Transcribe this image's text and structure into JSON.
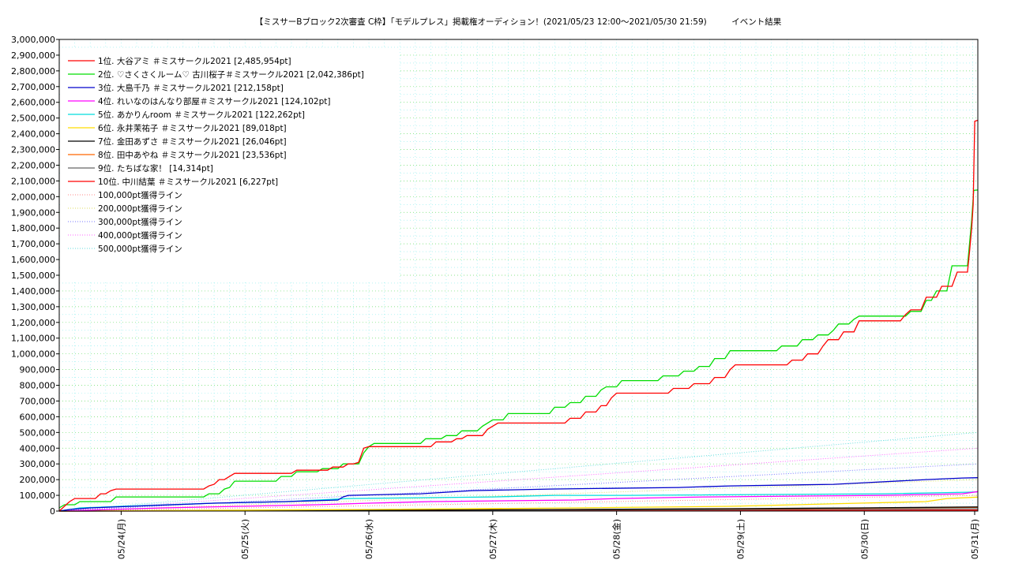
{
  "title": "【ミスサーBブロック2次審査 C枠】「モデルプレス」掲載権オーディション！(2021/05/23 12:00〜2021/05/30 21:59)　　　イベント結果",
  "chart_data": {
    "type": "line",
    "title": "【ミスサーBブロック2次審査 C枠】「モデルプレス」掲載権オーディション！(2021/05/23 12:00〜2021/05/30 21:59)　　　イベント結果",
    "xlabel": "",
    "ylabel": "",
    "x_unit": "hours since 2021/05/23 12:00",
    "xlim": [
      0,
      178
    ],
    "ylim": [
      0,
      3000000
    ],
    "yticks": [
      0,
      100000,
      200000,
      300000,
      400000,
      500000,
      600000,
      700000,
      800000,
      900000,
      1000000,
      1100000,
      1200000,
      1300000,
      1400000,
      1500000,
      1600000,
      1700000,
      1800000,
      1900000,
      2000000,
      2100000,
      2200000,
      2300000,
      2400000,
      2500000,
      2600000,
      2700000,
      2800000,
      2900000,
      3000000
    ],
    "ytick_labels": [
      "0",
      "100,000",
      "200,000",
      "300,000",
      "400,000",
      "500,000",
      "600,000",
      "700,000",
      "800,000",
      "900,000",
      "1,000,000",
      "1,100,000",
      "1,200,000",
      "1,300,000",
      "1,400,000",
      "1,500,000",
      "1,600,000",
      "1,700,000",
      "1,800,000",
      "1,900,000",
      "2,000,000",
      "2,100,000",
      "2,200,000",
      "2,300,000",
      "2,400,000",
      "2,500,000",
      "2,600,000",
      "2,700,000",
      "2,800,000",
      "2,900,000",
      "3,000,000"
    ],
    "xticks": [
      {
        "x": 12,
        "label": "05/24(月)"
      },
      {
        "x": 36,
        "label": "05/25(火)"
      },
      {
        "x": 60,
        "label": "05/26(水)"
      },
      {
        "x": 84,
        "label": "05/27(木)"
      },
      {
        "x": 108,
        "label": "05/28(金)"
      },
      {
        "x": 132,
        "label": "05/29(土)"
      },
      {
        "x": 156,
        "label": "05/30(日)"
      },
      {
        "x": 180,
        "label": "05/31(月)"
      }
    ],
    "grid": true,
    "legend_position": "top-left",
    "series": [
      {
        "name": "1位. 大谷アミ ＃ミスサークル2021 [2,485,954pt]",
        "color": "#ff0000",
        "dash": "",
        "points": [
          [
            0,
            0
          ],
          [
            1,
            30000
          ],
          [
            2,
            60000
          ],
          [
            3,
            80000
          ],
          [
            7,
            80000
          ],
          [
            8,
            110000
          ],
          [
            9,
            110000
          ],
          [
            10,
            130000
          ],
          [
            11,
            140000
          ],
          [
            28,
            140000
          ],
          [
            29,
            160000
          ],
          [
            30,
            170000
          ],
          [
            31,
            200000
          ],
          [
            32,
            200000
          ],
          [
            33,
            220000
          ],
          [
            34,
            240000
          ],
          [
            45,
            240000
          ],
          [
            46,
            260000
          ],
          [
            52,
            260000
          ],
          [
            53,
            280000
          ],
          [
            55,
            280000
          ],
          [
            56,
            300000
          ],
          [
            57,
            300000
          ],
          [
            58,
            310000
          ],
          [
            59,
            400000
          ],
          [
            60,
            410000
          ],
          [
            72,
            410000
          ],
          [
            73,
            440000
          ],
          [
            76,
            440000
          ],
          [
            77,
            460000
          ],
          [
            78,
            460000
          ],
          [
            79,
            480000
          ],
          [
            82,
            480000
          ],
          [
            83,
            520000
          ],
          [
            85,
            560000
          ],
          [
            98,
            560000
          ],
          [
            99,
            590000
          ],
          [
            101,
            590000
          ],
          [
            102,
            630000
          ],
          [
            104,
            630000
          ],
          [
            105,
            670000
          ],
          [
            106,
            670000
          ],
          [
            107,
            720000
          ],
          [
            108,
            750000
          ],
          [
            118,
            750000
          ],
          [
            119,
            780000
          ],
          [
            122,
            780000
          ],
          [
            123,
            810000
          ],
          [
            126,
            810000
          ],
          [
            127,
            850000
          ],
          [
            129,
            850000
          ],
          [
            130,
            900000
          ],
          [
            131,
            930000
          ],
          [
            141,
            930000
          ],
          [
            142,
            960000
          ],
          [
            144,
            960000
          ],
          [
            145,
            1000000
          ],
          [
            147,
            1000000
          ],
          [
            148,
            1050000
          ],
          [
            149,
            1090000
          ],
          [
            151,
            1090000
          ],
          [
            152,
            1140000
          ],
          [
            154,
            1140000
          ],
          [
            155,
            1210000
          ],
          [
            163,
            1210000
          ],
          [
            164,
            1250000
          ],
          [
            165,
            1280000
          ],
          [
            167,
            1280000
          ],
          [
            168,
            1360000
          ],
          [
            170,
            1360000
          ],
          [
            171,
            1430000
          ],
          [
            173,
            1430000
          ],
          [
            174,
            1520000
          ],
          [
            176,
            1520000
          ],
          [
            176.4,
            1650000
          ],
          [
            176.8,
            1800000
          ],
          [
            177.1,
            1950000
          ],
          [
            177.4,
            2480000
          ],
          [
            178,
            2485954
          ]
        ]
      },
      {
        "name": "2位. ♡さくさくルーム♡ 古川桜子＃ミスサークル2021 [2,042,386pt]",
        "color": "#00dd00",
        "dash": "",
        "points": [
          [
            0,
            20000
          ],
          [
            1,
            40000
          ],
          [
            3,
            40000
          ],
          [
            4,
            60000
          ],
          [
            10,
            60000
          ],
          [
            11,
            90000
          ],
          [
            28,
            90000
          ],
          [
            29,
            110000
          ],
          [
            31,
            110000
          ],
          [
            32,
            140000
          ],
          [
            33,
            150000
          ],
          [
            34,
            190000
          ],
          [
            42,
            190000
          ],
          [
            43,
            220000
          ],
          [
            45,
            220000
          ],
          [
            46,
            250000
          ],
          [
            50,
            250000
          ],
          [
            51,
            270000
          ],
          [
            54,
            270000
          ],
          [
            55,
            300000
          ],
          [
            58,
            300000
          ],
          [
            59,
            370000
          ],
          [
            60,
            410000
          ],
          [
            61,
            430000
          ],
          [
            70,
            430000
          ],
          [
            71,
            460000
          ],
          [
            74,
            460000
          ],
          [
            75,
            480000
          ],
          [
            77,
            480000
          ],
          [
            78,
            510000
          ],
          [
            81,
            510000
          ],
          [
            82,
            540000
          ],
          [
            84,
            580000
          ],
          [
            86,
            580000
          ],
          [
            87,
            620000
          ],
          [
            95,
            620000
          ],
          [
            96,
            660000
          ],
          [
            98,
            660000
          ],
          [
            99,
            690000
          ],
          [
            101,
            690000
          ],
          [
            102,
            730000
          ],
          [
            104,
            730000
          ],
          [
            105,
            770000
          ],
          [
            106,
            790000
          ],
          [
            108,
            790000
          ],
          [
            109,
            830000
          ],
          [
            116,
            830000
          ],
          [
            117,
            860000
          ],
          [
            120,
            860000
          ],
          [
            121,
            890000
          ],
          [
            123,
            890000
          ],
          [
            124,
            920000
          ],
          [
            126,
            920000
          ],
          [
            127,
            970000
          ],
          [
            129,
            970000
          ],
          [
            130,
            1020000
          ],
          [
            139,
            1020000
          ],
          [
            140,
            1050000
          ],
          [
            143,
            1050000
          ],
          [
            144,
            1090000
          ],
          [
            146,
            1090000
          ],
          [
            147,
            1120000
          ],
          [
            149,
            1120000
          ],
          [
            150,
            1150000
          ],
          [
            151,
            1190000
          ],
          [
            153,
            1190000
          ],
          [
            154,
            1220000
          ],
          [
            155,
            1240000
          ],
          [
            164,
            1240000
          ],
          [
            165,
            1270000
          ],
          [
            167,
            1270000
          ],
          [
            168,
            1340000
          ],
          [
            169,
            1340000
          ],
          [
            170,
            1400000
          ],
          [
            172,
            1400000
          ],
          [
            173,
            1560000
          ],
          [
            176,
            1560000
          ],
          [
            176.4,
            1700000
          ],
          [
            176.8,
            1850000
          ],
          [
            177.2,
            2040000
          ],
          [
            178,
            2042386
          ]
        ]
      },
      {
        "name": "3位. 大島千乃 ＃ミスサークル2021 [212,158pt]",
        "color": "#0000cc",
        "dash": "",
        "points": [
          [
            0,
            0
          ],
          [
            2,
            10000
          ],
          [
            6,
            20000
          ],
          [
            14,
            30000
          ],
          [
            22,
            40000
          ],
          [
            30,
            50000
          ],
          [
            44,
            60000
          ],
          [
            54,
            70000
          ],
          [
            55,
            90000
          ],
          [
            56,
            100000
          ],
          [
            70,
            110000
          ],
          [
            80,
            130000
          ],
          [
            95,
            140000
          ],
          [
            120,
            150000
          ],
          [
            130,
            160000
          ],
          [
            150,
            170000
          ],
          [
            156,
            180000
          ],
          [
            168,
            200000
          ],
          [
            175,
            210000
          ],
          [
            178,
            212158
          ]
        ]
      },
      {
        "name": "4位. れいなのはんなり部屋＃ミスサークル2021 [124,102pt]",
        "color": "#ff00ff",
        "dash": "",
        "points": [
          [
            0,
            0
          ],
          [
            10,
            10000
          ],
          [
            20,
            20000
          ],
          [
            35,
            30000
          ],
          [
            50,
            40000
          ],
          [
            60,
            50000
          ],
          [
            72,
            60000
          ],
          [
            100,
            70000
          ],
          [
            108,
            80000
          ],
          [
            125,
            90000
          ],
          [
            160,
            100000
          ],
          [
            175,
            110000
          ],
          [
            178,
            124102
          ]
        ]
      },
      {
        "name": "5位. あかりんroom ＃ミスサークル2021 [122,262pt]",
        "color": "#00dddd",
        "dash": "",
        "points": [
          [
            0,
            0
          ],
          [
            4,
            20000
          ],
          [
            12,
            30000
          ],
          [
            30,
            50000
          ],
          [
            44,
            60000
          ],
          [
            56,
            80000
          ],
          [
            84,
            90000
          ],
          [
            96,
            100000
          ],
          [
            110,
            100000
          ],
          [
            160,
            110000
          ],
          [
            176,
            120000
          ],
          [
            178,
            122262
          ]
        ]
      },
      {
        "name": "6位. 永井茉祐子 ＃ミスサークル2021 [89,018pt]",
        "color": "#ffdd00",
        "dash": "",
        "points": [
          [
            0,
            0
          ],
          [
            60,
            10000
          ],
          [
            100,
            20000
          ],
          [
            130,
            30000
          ],
          [
            155,
            50000
          ],
          [
            168,
            60000
          ],
          [
            172,
            80000
          ],
          [
            178,
            89018
          ]
        ]
      },
      {
        "name": "7位. 金田あずさ ＃ミスサークル2021 [26,046pt]",
        "color": "#000000",
        "dash": "",
        "points": [
          [
            0,
            0
          ],
          [
            60,
            5000
          ],
          [
            100,
            10000
          ],
          [
            130,
            15000
          ],
          [
            155,
            20000
          ],
          [
            178,
            26046
          ]
        ]
      },
      {
        "name": "8位. 田中あやね ＃ミスサークル2021 [23,536pt]",
        "color": "#ff6600",
        "dash": "",
        "points": [
          [
            0,
            0
          ],
          [
            50,
            5000
          ],
          [
            100,
            10000
          ],
          [
            140,
            15000
          ],
          [
            178,
            23536
          ]
        ]
      },
      {
        "name": "9位. たちばな家！ [14,314pt]",
        "color": "#666666",
        "dash": "",
        "points": [
          [
            0,
            0
          ],
          [
            60,
            3000
          ],
          [
            120,
            8000
          ],
          [
            178,
            14314
          ]
        ]
      },
      {
        "name": "10位. 中川結葉 ＃ミスサークル2021 [6,227pt]",
        "color": "#ff0000",
        "dash": "",
        "points": [
          [
            0,
            0
          ],
          [
            90,
            2000
          ],
          [
            178,
            6227
          ]
        ]
      },
      {
        "name": "100,000pt獲得ライン",
        "color": "#ff8888",
        "dash": "1,2",
        "points": [
          [
            0,
            0
          ],
          [
            178,
            100000
          ]
        ]
      },
      {
        "name": "200,000pt獲得ライン",
        "color": "#dddd66",
        "dash": "1,2",
        "points": [
          [
            0,
            0
          ],
          [
            178,
            200000
          ]
        ]
      },
      {
        "name": "300,000pt獲得ライン",
        "color": "#7777ff",
        "dash": "1,2",
        "points": [
          [
            0,
            0
          ],
          [
            178,
            300000
          ]
        ]
      },
      {
        "name": "400,000pt獲得ライン",
        "color": "#ff66ff",
        "dash": "1,2",
        "points": [
          [
            0,
            0
          ],
          [
            178,
            400000
          ]
        ]
      },
      {
        "name": "500,000pt獲得ライン",
        "color": "#66dddd",
        "dash": "1,2",
        "points": [
          [
            0,
            0
          ],
          [
            178,
            500000
          ]
        ]
      }
    ]
  }
}
